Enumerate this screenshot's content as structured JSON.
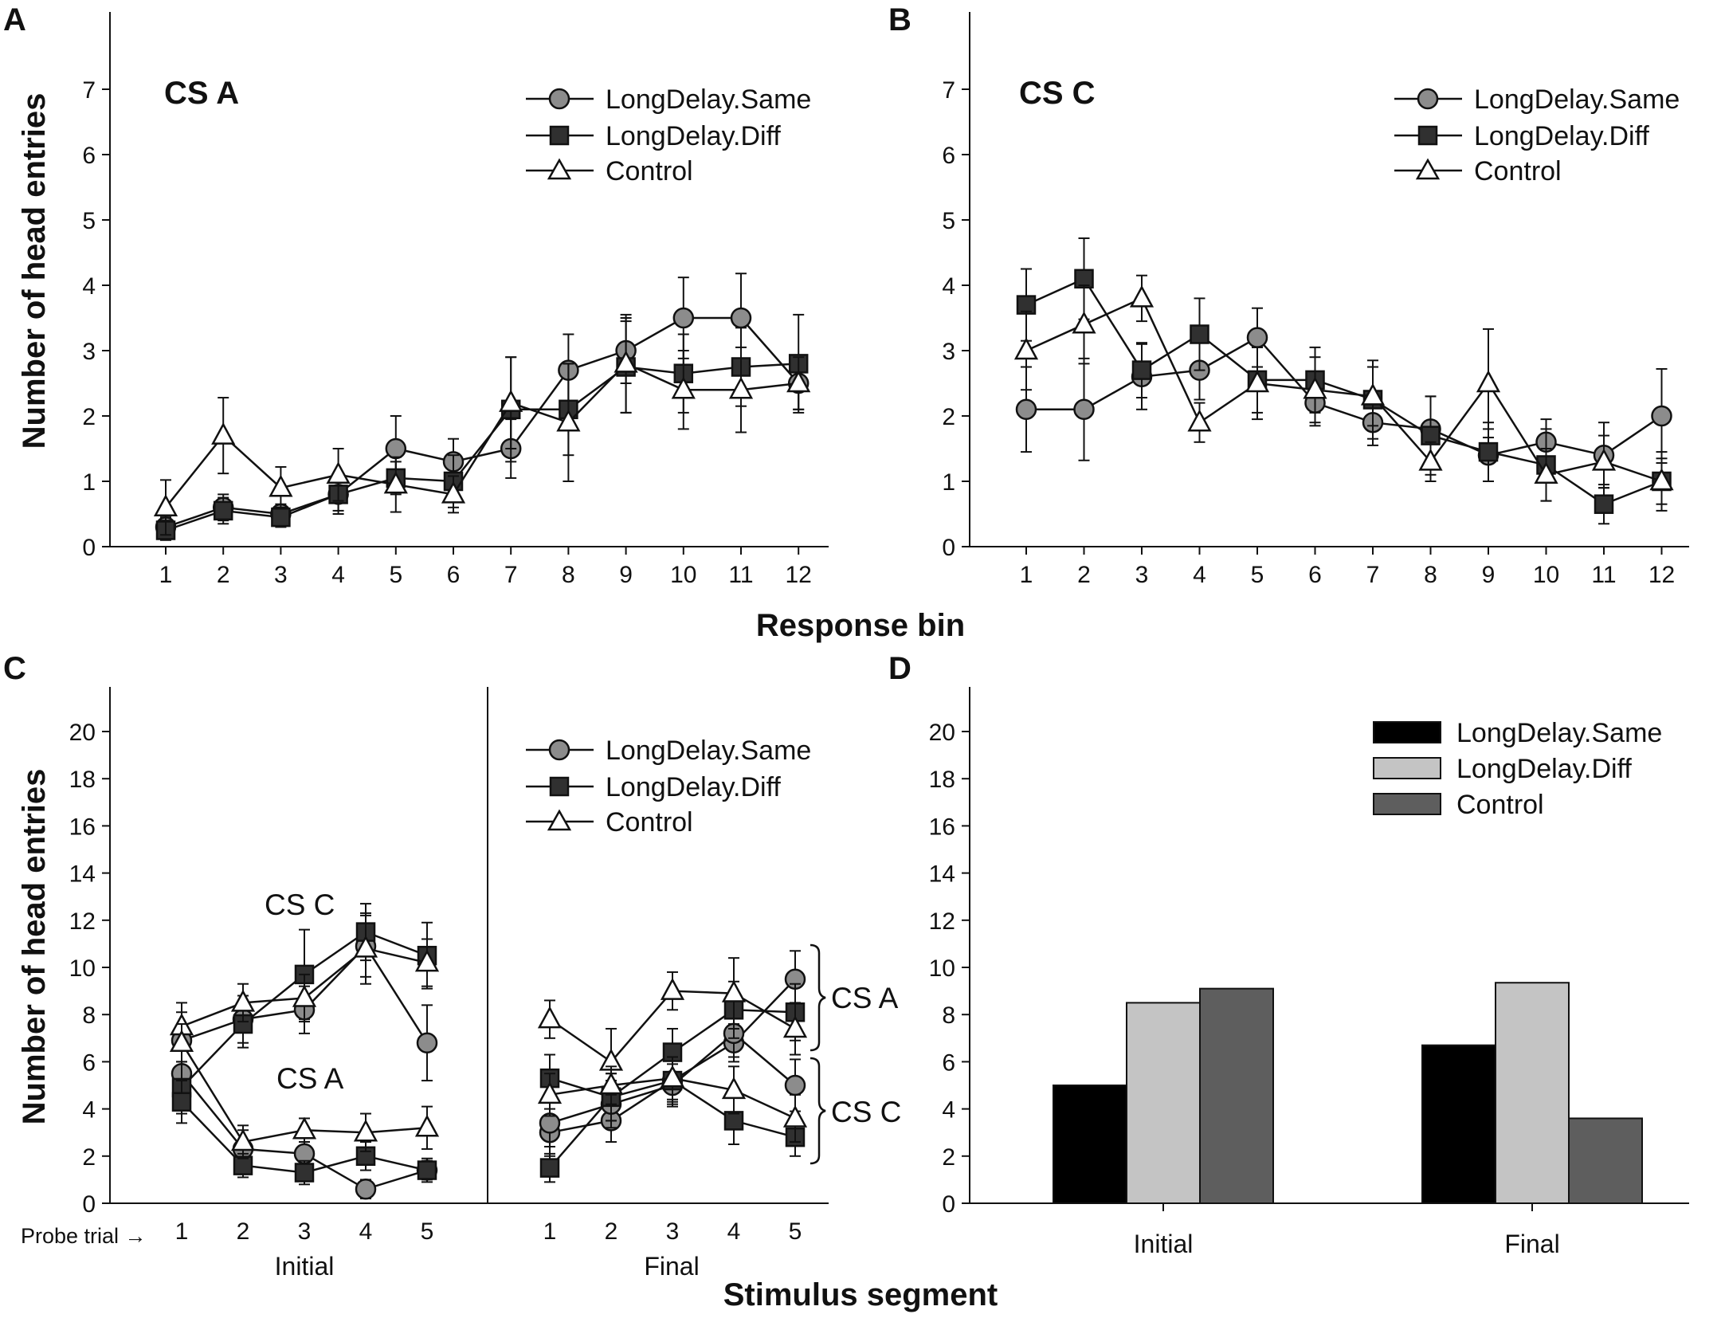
{
  "figure": {
    "panel_labels": [
      "A",
      "B",
      "C",
      "D"
    ],
    "shared_ylabel": "Number of head entries",
    "top_xlabel": "Response bin",
    "bottom_xlabel": "Stimulus segment",
    "legend": {
      "same": "LongDelay.Same",
      "diff": "LongDelay.Diff",
      "control": "Control"
    },
    "colors": {
      "same_marker": "#8c8c8c",
      "diff_marker": "#303030",
      "control_marker": "#ffffff",
      "bar_same": "#000000",
      "bar_diff": "#c4c4c4",
      "bar_control": "#5e5e5e"
    }
  },
  "chart_data": [
    {
      "panel": "A",
      "type": "line",
      "title": "CS A",
      "xlabel": "Response bin",
      "ylabel": "Number of head entries",
      "x": [
        1,
        2,
        3,
        4,
        5,
        6,
        7,
        8,
        9,
        10,
        11,
        12
      ],
      "ylim": [
        0,
        8
      ],
      "yticks": [
        0,
        1,
        2,
        3,
        4,
        5,
        6,
        7
      ],
      "series": [
        {
          "name": "LongDelay.Same",
          "values": [
            0.3,
            0.6,
            0.5,
            0.8,
            1.5,
            1.3,
            1.5,
            2.7,
            3.0,
            3.5,
            3.5,
            2.5
          ],
          "errors": [
            0.15,
            0.2,
            0.15,
            0.25,
            0.5,
            0.35,
            0.45,
            0.55,
            0.5,
            0.62,
            0.68,
            0.4
          ]
        },
        {
          "name": "LongDelay.Diff",
          "values": [
            0.25,
            0.55,
            0.45,
            0.8,
            1.05,
            1.0,
            2.1,
            2.1,
            2.75,
            2.65,
            2.75,
            2.8
          ],
          "errors": [
            0.15,
            0.2,
            0.15,
            0.3,
            0.25,
            0.4,
            0.8,
            0.7,
            0.7,
            0.6,
            0.6,
            0.75
          ]
        },
        {
          "name": "Control",
          "values": [
            0.6,
            1.7,
            0.9,
            1.1,
            0.95,
            0.8,
            2.2,
            1.9,
            2.8,
            2.4,
            2.4,
            2.5
          ],
          "errors": [
            0.42,
            0.58,
            0.32,
            0.4,
            0.42,
            0.28,
            0.7,
            0.9,
            0.75,
            0.6,
            0.65,
            0.4
          ]
        }
      ]
    },
    {
      "panel": "B",
      "type": "line",
      "title": "CS C",
      "xlabel": "Response bin",
      "ylabel": "Number of head entries",
      "x": [
        1,
        2,
        3,
        4,
        5,
        6,
        7,
        8,
        9,
        10,
        11,
        12
      ],
      "ylim": [
        0,
        8
      ],
      "yticks": [
        0,
        1,
        2,
        3,
        4,
        5,
        6,
        7
      ],
      "series": [
        {
          "name": "LongDelay.Same",
          "values": [
            2.1,
            2.1,
            2.6,
            2.7,
            3.2,
            2.2,
            1.9,
            1.8,
            1.4,
            1.6,
            1.4,
            2.0
          ],
          "errors": [
            0.65,
            0.78,
            0.5,
            0.45,
            0.45,
            0.35,
            0.35,
            0.5,
            0.4,
            0.35,
            0.5,
            0.72
          ]
        },
        {
          "name": "LongDelay.Diff",
          "values": [
            3.7,
            4.1,
            2.7,
            3.25,
            2.55,
            2.55,
            2.25,
            1.7,
            1.45,
            1.25,
            0.65,
            1.0
          ],
          "errors": [
            0.55,
            0.62,
            0.42,
            0.55,
            0.5,
            0.5,
            0.6,
            0.6,
            0.45,
            0.55,
            0.3,
            0.45
          ]
        },
        {
          "name": "Control",
          "values": [
            3.0,
            3.4,
            3.8,
            1.9,
            2.5,
            2.4,
            2.3,
            1.3,
            2.5,
            1.1,
            1.3,
            1.0
          ],
          "errors": [
            0.6,
            0.6,
            0.35,
            0.3,
            0.55,
            0.5,
            0.45,
            0.3,
            0.83,
            0.4,
            0.4,
            0.35
          ]
        }
      ]
    },
    {
      "panel": "C",
      "type": "line",
      "xlabel": "Stimulus segment",
      "ylabel": "Number of head entries",
      "ylim": [
        0,
        22
      ],
      "yticks": [
        0,
        2,
        4,
        6,
        8,
        10,
        12,
        14,
        16,
        18,
        20
      ],
      "probe_label": "Probe trial →",
      "x": [
        1,
        2,
        3,
        4,
        5
      ],
      "segments": [
        "Initial",
        "Final"
      ],
      "annotations": [
        "CS C",
        "CS A",
        "CS A",
        "CS C"
      ],
      "series": [
        {
          "name": "LongDelay.Same",
          "stimulus": "CS C",
          "segment": "Initial",
          "values": [
            6.9,
            7.8,
            8.2,
            10.9,
            6.8
          ],
          "errors": [
            1.2,
            1.0,
            1.0,
            1.3,
            1.6
          ]
        },
        {
          "name": "LongDelay.Same",
          "stimulus": "CS A",
          "segment": "Initial",
          "values": [
            5.5,
            2.3,
            2.1,
            0.6,
            1.4
          ],
          "errors": [
            1.0,
            0.8,
            0.5,
            0.4,
            0.4
          ]
        },
        {
          "name": "LongDelay.Diff",
          "stimulus": "CS C",
          "segment": "Initial",
          "values": [
            4.9,
            7.6,
            9.7,
            11.5,
            10.5
          ],
          "errors": [
            1.1,
            1.0,
            1.9,
            1.2,
            1.4
          ]
        },
        {
          "name": "LongDelay.Diff",
          "stimulus": "CS A",
          "segment": "Initial",
          "values": [
            4.3,
            1.6,
            1.3,
            2.0,
            1.4
          ],
          "errors": [
            0.9,
            0.5,
            0.5,
            0.6,
            0.5
          ]
        },
        {
          "name": "Control",
          "stimulus": "CS C",
          "segment": "Initial",
          "values": [
            7.5,
            8.5,
            8.7,
            10.8,
            10.2
          ],
          "errors": [
            1.0,
            0.8,
            1.0,
            1.5,
            1.0
          ]
        },
        {
          "name": "Control",
          "stimulus": "CS A",
          "segment": "Initial",
          "values": [
            6.8,
            2.6,
            3.1,
            3.0,
            3.2
          ],
          "errors": [
            0.8,
            0.7,
            0.5,
            0.8,
            0.9
          ]
        },
        {
          "name": "LongDelay.Same",
          "stimulus": "CS A",
          "segment": "Final",
          "values": [
            3.0,
            3.5,
            5.2,
            6.8,
            9.5
          ],
          "errors": [
            1.0,
            0.9,
            0.9,
            0.8,
            1.2
          ]
        },
        {
          "name": "LongDelay.Same",
          "stimulus": "CS C",
          "segment": "Final",
          "values": [
            3.4,
            4.2,
            5.0,
            7.2,
            5.0
          ],
          "errors": [
            1.0,
            1.0,
            0.9,
            1.0,
            1.1
          ]
        },
        {
          "name": "LongDelay.Diff",
          "stimulus": "CS A",
          "segment": "Final",
          "values": [
            5.3,
            4.5,
            6.4,
            8.2,
            8.1
          ],
          "errors": [
            1.0,
            1.0,
            1.0,
            1.2,
            1.2
          ]
        },
        {
          "name": "LongDelay.Diff",
          "stimulus": "CS C",
          "segment": "Final",
          "values": [
            1.5,
            4.5,
            5.2,
            3.5,
            2.8
          ],
          "errors": [
            0.6,
            1.0,
            1.0,
            1.0,
            0.8
          ]
        },
        {
          "name": "Control",
          "stimulus": "CS A",
          "segment": "Final",
          "values": [
            7.8,
            6.0,
            9.0,
            8.9,
            7.4
          ],
          "errors": [
            0.8,
            1.4,
            0.8,
            1.5,
            1.1
          ]
        },
        {
          "name": "Control",
          "stimulus": "CS C",
          "segment": "Final",
          "values": [
            4.6,
            5.0,
            5.3,
            4.8,
            3.6
          ],
          "errors": [
            0.9,
            0.8,
            0.9,
            1.0,
            1.0
          ]
        }
      ]
    },
    {
      "panel": "D",
      "type": "bar",
      "xlabel": "Stimulus segment",
      "categories": [
        "Initial",
        "Final"
      ],
      "ylim": [
        0,
        22
      ],
      "yticks": [
        0,
        2,
        4,
        6,
        8,
        10,
        12,
        14,
        16,
        18,
        20
      ],
      "series": [
        {
          "name": "LongDelay.Same",
          "values": [
            5.0,
            6.7
          ]
        },
        {
          "name": "LongDelay.Diff",
          "values": [
            8.5,
            9.35
          ]
        },
        {
          "name": "Control",
          "values": [
            9.1,
            3.6
          ]
        }
      ]
    }
  ]
}
